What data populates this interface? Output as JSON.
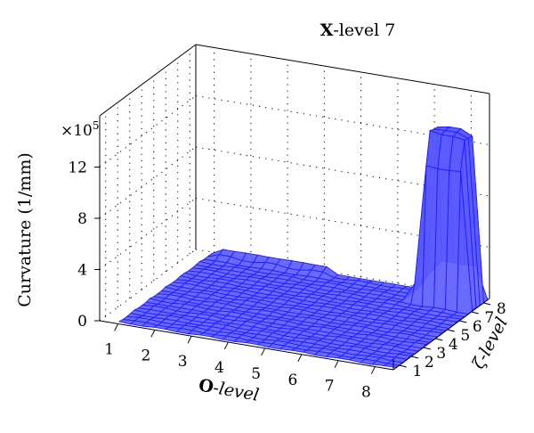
{
  "chart_data": {
    "type": "surface",
    "title_prefix": "X",
    "title_suffix": "-level 7",
    "xlabel_prefix": "O",
    "xlabel_suffix": "-level",
    "ylabel": "ζ-level",
    "zlabel": "Curvature (1/mm)",
    "z_multiplier": "×10",
    "z_multiplier_exp": "5",
    "x_ticks": [
      "1",
      "2",
      "3",
      "4",
      "5",
      "6",
      "7",
      "8"
    ],
    "y_ticks": [
      "1",
      "2",
      "3",
      "4",
      "5",
      "6",
      "7",
      "8"
    ],
    "z_ticks": [
      "0",
      "4",
      "8",
      "12"
    ],
    "z_range": [
      0,
      16
    ],
    "grid": true,
    "color": "#1f1fff",
    "baseline_value": 0,
    "peak": {
      "o_level": 7.7,
      "zeta_level": 7.6,
      "value": 13.2
    },
    "ridge": {
      "o_level_start": 1.0,
      "o_level_end": 4.2,
      "zeta_level": 8.0,
      "value": 0.5
    }
  }
}
